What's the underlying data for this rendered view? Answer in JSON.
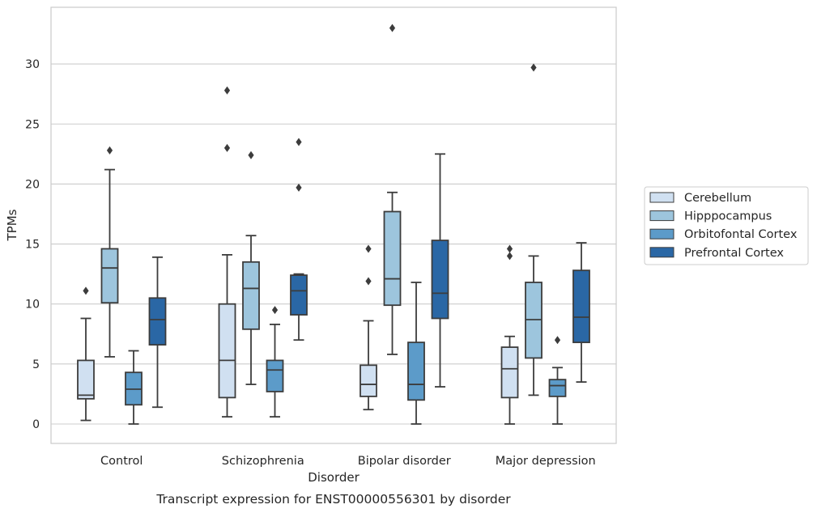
{
  "chart_data": {
    "type": "box",
    "title": "Transcript expression for ENST00000556301 by disorder",
    "xlabel": "Disorder",
    "ylabel": "TPMs",
    "ylim": [
      -1.6,
      34.2
    ],
    "yticks": [
      0,
      5,
      10,
      15,
      20,
      25,
      30
    ],
    "grid": true,
    "legend_position": "right",
    "categories": [
      "Control",
      "Schizophrenia",
      "Bipolar disorder",
      "Major depression"
    ],
    "series": [
      {
        "name": "Cerebellum",
        "color": "#d0e0f1",
        "boxes": [
          {
            "whislo": 0.3,
            "q1": 2.1,
            "med": 2.4,
            "q3": 5.3,
            "whishi": 8.8,
            "fliers": [
              11.1
            ]
          },
          {
            "whislo": 0.6,
            "q1": 2.2,
            "med": 5.3,
            "q3": 10.0,
            "whishi": 14.1,
            "fliers": [
              23.0,
              27.8
            ]
          },
          {
            "whislo": 1.2,
            "q1": 2.3,
            "med": 3.3,
            "q3": 4.9,
            "whishi": 8.6,
            "fliers": [
              11.9,
              14.6
            ]
          },
          {
            "whislo": 0.0,
            "q1": 2.2,
            "med": 4.6,
            "q3": 6.4,
            "whishi": 7.3,
            "fliers": [
              14.0,
              14.6
            ]
          }
        ]
      },
      {
        "name": "Hipppocampus",
        "color": "#9dc5dd",
        "boxes": [
          {
            "whislo": 5.6,
            "q1": 10.1,
            "med": 13.0,
            "q3": 14.6,
            "whishi": 21.2,
            "fliers": [
              22.8
            ]
          },
          {
            "whislo": 3.3,
            "q1": 7.9,
            "med": 11.3,
            "q3": 13.5,
            "whishi": 15.7,
            "fliers": [
              22.4
            ]
          },
          {
            "whislo": 5.8,
            "q1": 9.9,
            "med": 12.1,
            "q3": 17.7,
            "whishi": 19.3,
            "fliers": [
              33.0
            ]
          },
          {
            "whislo": 2.4,
            "q1": 5.5,
            "med": 8.7,
            "q3": 11.8,
            "whishi": 14.0,
            "fliers": [
              29.7
            ]
          }
        ]
      },
      {
        "name": "Orbitofontal Cortex",
        "color": "#5c9bc9",
        "boxes": [
          {
            "whislo": 0.0,
            "q1": 1.6,
            "med": 2.9,
            "q3": 4.3,
            "whishi": 6.1,
            "fliers": []
          },
          {
            "whislo": 0.6,
            "q1": 2.7,
            "med": 4.5,
            "q3": 5.3,
            "whishi": 8.3,
            "fliers": [
              9.5
            ]
          },
          {
            "whislo": 0.0,
            "q1": 2.0,
            "med": 3.3,
            "q3": 6.8,
            "whishi": 11.8,
            "fliers": []
          },
          {
            "whislo": 0.0,
            "q1": 2.3,
            "med": 3.2,
            "q3": 3.7,
            "whishi": 4.7,
            "fliers": [
              7.0
            ]
          }
        ]
      },
      {
        "name": "Prefrontal Cortex",
        "color": "#2a67a5",
        "boxes": [
          {
            "whislo": 1.4,
            "q1": 6.6,
            "med": 8.7,
            "q3": 10.5,
            "whishi": 13.9,
            "fliers": []
          },
          {
            "whislo": 7.0,
            "q1": 9.1,
            "med": 11.1,
            "q3": 12.4,
            "whishi": 12.5,
            "fliers": [
              19.7,
              23.5
            ]
          },
          {
            "whislo": 3.1,
            "q1": 8.8,
            "med": 10.9,
            "q3": 15.3,
            "whishi": 22.5,
            "fliers": []
          },
          {
            "whislo": 3.5,
            "q1": 6.8,
            "med": 8.9,
            "q3": 12.8,
            "whishi": 15.1,
            "fliers": []
          }
        ]
      }
    ]
  }
}
